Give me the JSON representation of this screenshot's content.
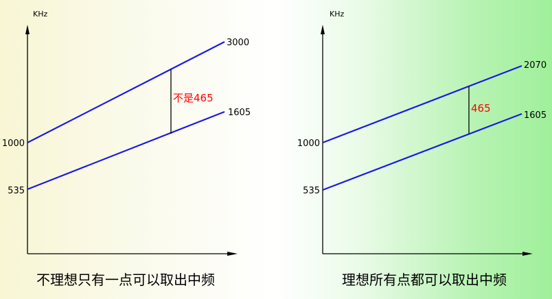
{
  "left_panel": {
    "unit": "KHz",
    "y_low": "535",
    "y_high": "1000",
    "line_low_end": "1605",
    "line_high_end": "3000",
    "gap_label": "不是465",
    "caption": "不理想只有一点可以取出中频"
  },
  "right_panel": {
    "unit": "KHz",
    "y_low": "535",
    "y_high": "1000",
    "line_low_end": "1605",
    "line_high_end": "2070",
    "gap_label": "465",
    "caption": "理想所有点都可以取出中频"
  },
  "colors": {
    "line": "#1a1ae6",
    "highlight": "#ff0000",
    "axis": "#000000"
  }
}
